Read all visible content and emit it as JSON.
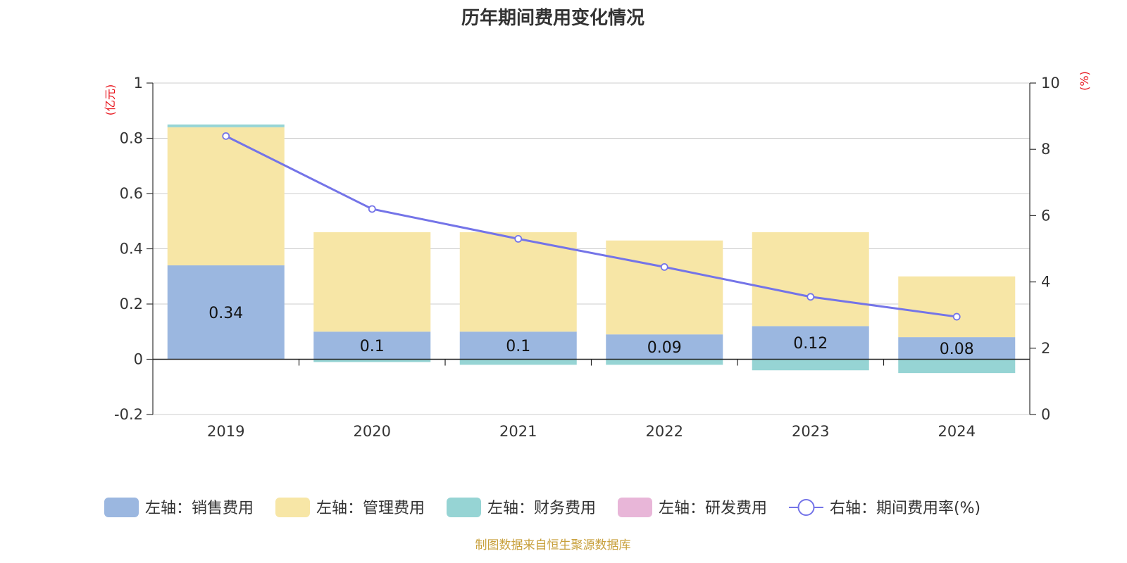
{
  "title": "历年期间费用变化情况",
  "source_note": "制图数据来自恒生聚源数据库",
  "chart_data": {
    "type": "bar",
    "categories": [
      "2019",
      "2020",
      "2021",
      "2022",
      "2023",
      "2024"
    ],
    "left_axis": {
      "unit_label": "(亿元)",
      "ylim": [
        -0.2,
        1
      ],
      "ticks": [
        "-0.2",
        "0",
        "0.2",
        "0.4",
        "0.6",
        "0.8",
        "1"
      ]
    },
    "right_axis": {
      "unit_label": "(%)",
      "ylim": [
        0,
        10
      ],
      "ticks": [
        "0",
        "2",
        "4",
        "6",
        "8",
        "10"
      ]
    },
    "series": [
      {
        "name": "左轴：销售费用",
        "kind": "bar",
        "axis": "left",
        "color": "#9bb7e0",
        "values": [
          0.34,
          0.1,
          0.1,
          0.09,
          0.12,
          0.08
        ],
        "labels": [
          "0.34",
          "0.1",
          "0.1",
          "0.09",
          "0.12",
          "0.08"
        ]
      },
      {
        "name": "左轴：管理费用",
        "kind": "bar",
        "axis": "left",
        "color": "#f7e6a6",
        "values": [
          0.5,
          0.36,
          0.36,
          0.34,
          0.34,
          0.22
        ]
      },
      {
        "name": "左轴：财务费用",
        "kind": "bar",
        "axis": "left",
        "color": "#96d4d4",
        "values": [
          0.01,
          -0.01,
          -0.02,
          -0.02,
          -0.04,
          -0.05
        ]
      },
      {
        "name": "左轴：研发费用",
        "kind": "bar",
        "axis": "left",
        "color": "#e8b6d8",
        "values": [
          0,
          0,
          0,
          0,
          0,
          0
        ]
      },
      {
        "name": "右轴：期间费用率(%)",
        "kind": "line",
        "axis": "right",
        "color": "#7474e8",
        "values": [
          8.4,
          6.2,
          5.3,
          4.45,
          3.55,
          2.95
        ]
      }
    ],
    "grid": true,
    "legend_position": "bottom"
  }
}
